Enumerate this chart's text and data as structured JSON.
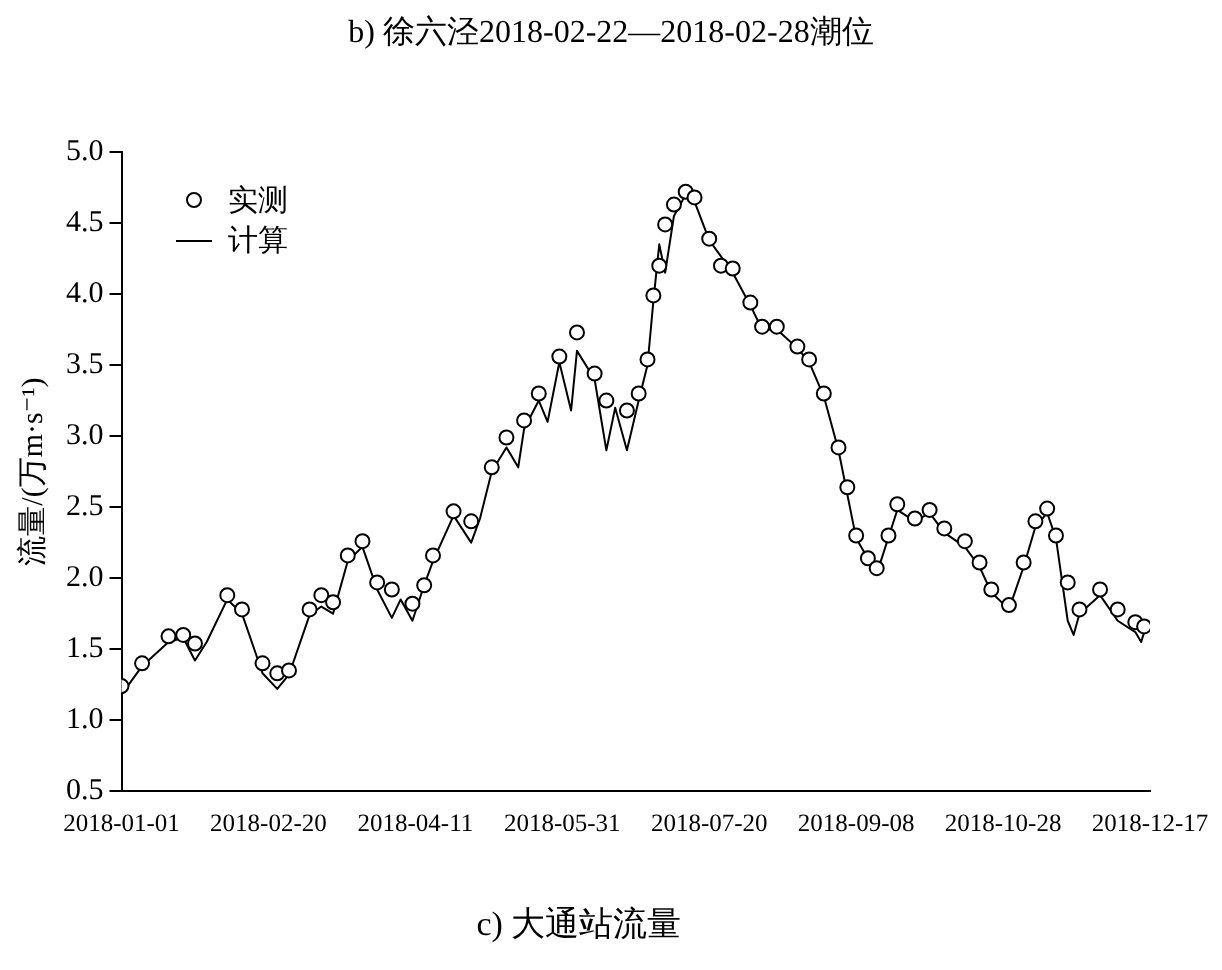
{
  "chart_data": {
    "type": "line",
    "title": "c) 大通站流量",
    "annotations": [
      "b) 徐六泾2018-02-22—2018-02-28潮位"
    ],
    "ylabel": "流量/(万m·s⁻¹)",
    "xlim": [
      "2018-01-01",
      "2018-12-17"
    ],
    "xticks": [
      "2018-01-01",
      "2018-02-20",
      "2018-04-11",
      "2018-05-31",
      "2018-07-20",
      "2018-09-08",
      "2018-10-28",
      "2018-12-17"
    ],
    "ylim": [
      0.5,
      5.0
    ],
    "yticks": [
      {
        "value": 0.5,
        "label": "0.5"
      },
      {
        "value": 1,
        "label": "1.0"
      },
      {
        "value": 1.5,
        "label": "1.5"
      },
      {
        "value": 2,
        "label": "2.0"
      },
      {
        "value": 2.5,
        "label": "2.5"
      },
      {
        "value": 3,
        "label": "3.0"
      },
      {
        "value": 3.5,
        "label": "3.5"
      },
      {
        "value": 4,
        "label": "4.0"
      },
      {
        "value": 4.5,
        "label": "4.5"
      },
      {
        "value": 5,
        "label": "5.0"
      }
    ],
    "grid": false,
    "legend": "top left",
    "series": [
      {
        "name": "实测",
        "type": "scatter",
        "marker": "circle",
        "color": "#000000",
        "x": [
          "2018-01-01",
          "2018-01-08",
          "2018-01-17",
          "2018-01-22",
          "2018-01-26",
          "2018-02-06",
          "2018-02-11",
          "2018-02-18",
          "2018-02-23",
          "2018-02-27",
          "2018-03-06",
          "2018-03-10",
          "2018-03-14",
          "2018-03-19",
          "2018-03-24",
          "2018-03-29",
          "2018-04-03",
          "2018-04-10",
          "2018-04-14",
          "2018-04-17",
          "2018-04-24",
          "2018-04-30",
          "2018-05-07",
          "2018-05-12",
          "2018-05-18",
          "2018-05-23",
          "2018-05-30",
          "2018-06-05",
          "2018-06-11",
          "2018-06-15",
          "2018-06-22",
          "2018-06-26",
          "2018-06-29",
          "2018-07-01",
          "2018-07-03",
          "2018-07-05",
          "2018-07-08",
          "2018-07-12",
          "2018-07-15",
          "2018-07-20",
          "2018-07-24",
          "2018-07-28",
          "2018-08-03",
          "2018-08-07",
          "2018-08-12",
          "2018-08-19",
          "2018-08-23",
          "2018-08-28",
          "2018-09-02",
          "2018-09-05",
          "2018-09-08",
          "2018-09-12",
          "2018-09-15",
          "2018-09-19",
          "2018-09-22",
          "2018-09-28",
          "2018-10-03",
          "2018-10-08",
          "2018-10-15",
          "2018-10-20",
          "2018-10-24",
          "2018-10-30",
          "2018-11-04",
          "2018-11-08",
          "2018-11-12",
          "2018-11-15",
          "2018-11-19",
          "2018-11-23",
          "2018-11-30",
          "2018-12-06",
          "2018-12-12",
          "2018-12-15"
        ],
        "values": [
          1.24,
          1.4,
          1.59,
          1.6,
          1.54,
          1.88,
          1.78,
          1.4,
          1.33,
          1.35,
          1.78,
          1.88,
          1.83,
          2.16,
          2.26,
          1.97,
          1.92,
          1.82,
          1.95,
          2.16,
          2.47,
          2.4,
          2.78,
          2.99,
          3.11,
          3.3,
          3.56,
          3.73,
          3.44,
          3.25,
          3.18,
          3.3,
          3.54,
          3.99,
          4.2,
          4.49,
          4.63,
          4.72,
          4.68,
          4.39,
          4.2,
          4.18,
          3.94,
          3.77,
          3.77,
          3.63,
          3.54,
          3.3,
          2.92,
          2.64,
          2.3,
          2.14,
          2.07,
          2.3,
          2.52,
          2.42,
          2.48,
          2.35,
          2.26,
          2.11,
          1.92,
          1.81,
          2.11,
          2.4,
          2.49,
          2.3,
          1.97,
          1.78,
          1.92,
          1.78,
          1.69,
          1.66
        ]
      },
      {
        "name": "计算",
        "type": "line",
        "marker": "none",
        "line_style": "solid",
        "color": "#000000",
        "x": [
          "2018-01-01",
          "2018-01-08",
          "2018-01-17",
          "2018-01-22",
          "2018-01-26",
          "2018-01-30",
          "2018-02-06",
          "2018-02-11",
          "2018-02-18",
          "2018-02-23",
          "2018-02-27",
          "2018-03-06",
          "2018-03-10",
          "2018-03-14",
          "2018-03-19",
          "2018-03-24",
          "2018-03-29",
          "2018-04-03",
          "2018-04-06",
          "2018-04-10",
          "2018-04-14",
          "2018-04-17",
          "2018-04-24",
          "2018-04-30",
          "2018-05-03",
          "2018-05-07",
          "2018-05-12",
          "2018-05-16",
          "2018-05-18",
          "2018-05-23",
          "2018-05-26",
          "2018-05-30",
          "2018-06-03",
          "2018-06-05",
          "2018-06-11",
          "2018-06-15",
          "2018-06-18",
          "2018-06-22",
          "2018-06-26",
          "2018-06-29",
          "2018-07-01",
          "2018-07-03",
          "2018-07-05",
          "2018-07-08",
          "2018-07-12",
          "2018-07-15",
          "2018-07-20",
          "2018-07-28",
          "2018-08-03",
          "2018-08-07",
          "2018-08-12",
          "2018-08-19",
          "2018-08-23",
          "2018-08-28",
          "2018-09-02",
          "2018-09-08",
          "2018-09-15",
          "2018-09-22",
          "2018-09-28",
          "2018-10-03",
          "2018-10-08",
          "2018-10-15",
          "2018-10-20",
          "2018-10-24",
          "2018-10-30",
          "2018-11-04",
          "2018-11-08",
          "2018-11-12",
          "2018-11-15",
          "2018-11-19",
          "2018-11-21",
          "2018-11-23",
          "2018-11-30",
          "2018-12-06",
          "2018-12-12",
          "2018-12-14",
          "2018-12-15"
        ],
        "values": [
          1.18,
          1.38,
          1.55,
          1.58,
          1.42,
          1.55,
          1.85,
          1.75,
          1.33,
          1.22,
          1.32,
          1.74,
          1.8,
          1.75,
          2.12,
          2.22,
          1.92,
          1.72,
          1.85,
          1.7,
          1.95,
          2.12,
          2.44,
          2.25,
          2.42,
          2.75,
          2.92,
          2.78,
          3.05,
          3.25,
          3.1,
          3.52,
          3.18,
          3.6,
          3.4,
          2.9,
          3.2,
          2.9,
          3.25,
          3.5,
          3.95,
          4.35,
          4.15,
          4.55,
          4.7,
          4.65,
          4.38,
          4.15,
          3.92,
          3.75,
          3.75,
          3.62,
          3.52,
          3.28,
          2.9,
          2.28,
          2.03,
          2.48,
          2.4,
          2.46,
          2.32,
          2.22,
          2.08,
          1.9,
          1.78,
          2.08,
          2.36,
          2.46,
          2.28,
          1.7,
          1.6,
          1.75,
          1.88,
          1.7,
          1.62,
          1.55,
          1.62
        ]
      }
    ]
  }
}
